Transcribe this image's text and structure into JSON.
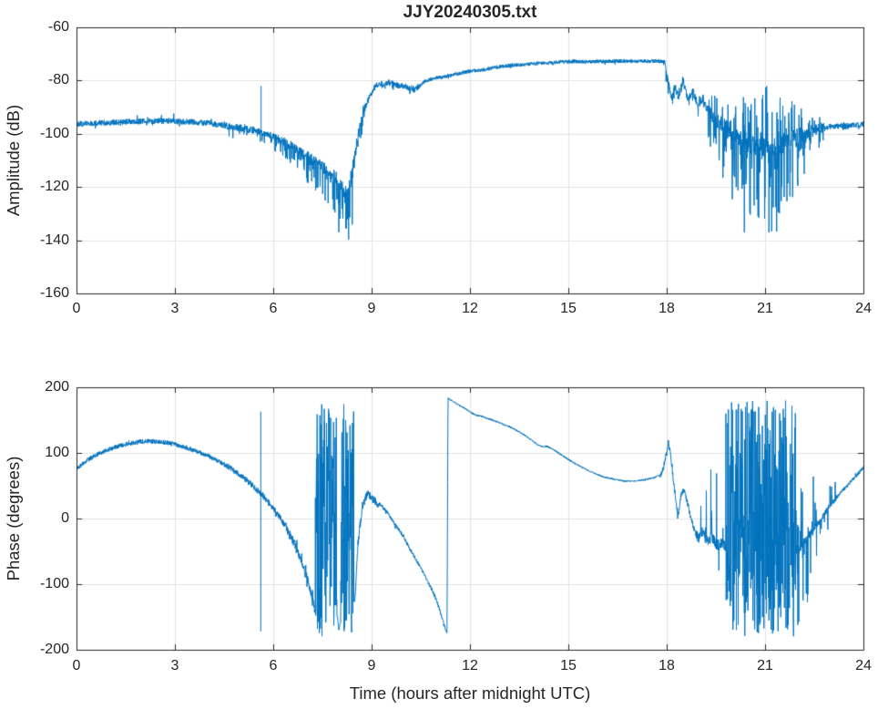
{
  "figure": {
    "background": "#ffffff",
    "axis_color": "#262626",
    "grid_color": "#e2e2e2",
    "tick_label_color": "#262626"
  },
  "chart_data": [
    {
      "type": "line",
      "title": "JJY20240305.txt",
      "xlabel": "",
      "ylabel": "Amplitude (dB)",
      "xlim": [
        0,
        24
      ],
      "ylim": [
        -160,
        -60
      ],
      "xticks": [
        0,
        3,
        6,
        9,
        12,
        15,
        18,
        21,
        24
      ],
      "yticks": [
        -60,
        -80,
        -100,
        -120,
        -140,
        -160
      ],
      "grid": true,
      "legend": "none",
      "line_color": "#0072BD",
      "series": [
        {
          "name": "amplitude",
          "keypoints": [
            [
              0,
              -96.5
            ],
            [
              0.5,
              -96
            ],
            [
              1,
              -95.8
            ],
            [
              1.5,
              -95.5
            ],
            [
              2,
              -95.3
            ],
            [
              2.5,
              -95.2
            ],
            [
              3,
              -95.3
            ],
            [
              3.5,
              -95.6
            ],
            [
              4,
              -96
            ],
            [
              4.5,
              -96.8
            ],
            [
              5,
              -97.8
            ],
            [
              5.5,
              -99
            ],
            [
              6,
              -101
            ],
            [
              6.4,
              -103.5
            ],
            [
              6.8,
              -106.5
            ],
            [
              7.2,
              -110
            ],
            [
              7.6,
              -113.5
            ],
            [
              7.9,
              -117
            ],
            [
              8.1,
              -120
            ],
            [
              8.25,
              -122
            ],
            [
              8.35,
              -118
            ],
            [
              8.45,
              -111
            ],
            [
              8.55,
              -103
            ],
            [
              8.65,
              -97
            ],
            [
              8.75,
              -92
            ],
            [
              8.85,
              -88.5
            ],
            [
              9,
              -84.5
            ],
            [
              9.1,
              -82.5
            ],
            [
              9.25,
              -81
            ],
            [
              9.4,
              -81.5
            ],
            [
              9.55,
              -80.5
            ],
            [
              9.7,
              -81.5
            ],
            [
              9.85,
              -82
            ],
            [
              10,
              -82
            ],
            [
              10.15,
              -83
            ],
            [
              10.3,
              -83.5
            ],
            [
              10.45,
              -82
            ],
            [
              10.6,
              -80.5
            ],
            [
              10.8,
              -79.5
            ],
            [
              11,
              -79
            ],
            [
              11.3,
              -78.5
            ],
            [
              11.6,
              -77.5
            ],
            [
              12,
              -76.5
            ],
            [
              12.4,
              -76
            ],
            [
              12.8,
              -75
            ],
            [
              13.2,
              -74.3
            ],
            [
              13.6,
              -74
            ],
            [
              14,
              -73.6
            ],
            [
              14.4,
              -73.3
            ],
            [
              14.8,
              -73
            ],
            [
              15.2,
              -72.8
            ],
            [
              15.6,
              -73
            ],
            [
              16,
              -72.8
            ],
            [
              16.4,
              -72.7
            ],
            [
              16.8,
              -72.6
            ],
            [
              17.2,
              -72.8
            ],
            [
              17.6,
              -72.7
            ],
            [
              17.9,
              -72.8
            ],
            [
              17.95,
              -74
            ],
            [
              18.05,
              -81
            ],
            [
              18.15,
              -87
            ],
            [
              18.25,
              -82
            ],
            [
              18.35,
              -86
            ],
            [
              18.5,
              -80.5
            ],
            [
              18.65,
              -87
            ],
            [
              18.8,
              -84
            ],
            [
              18.95,
              -89
            ],
            [
              19.1,
              -87
            ],
            [
              19.3,
              -92
            ],
            [
              19.5,
              -95
            ],
            [
              19.8,
              -98
            ],
            [
              20.1,
              -100
            ],
            [
              20.5,
              -103
            ],
            [
              20.9,
              -105
            ],
            [
              21.2,
              -107
            ],
            [
              21.5,
              -105
            ],
            [
              21.8,
              -102.5
            ],
            [
              22.1,
              -100.5
            ],
            [
              22.4,
              -99
            ],
            [
              22.7,
              -98
            ],
            [
              23,
              -97.3
            ],
            [
              23.4,
              -97
            ],
            [
              23.8,
              -96.6
            ],
            [
              24,
              -96.4
            ]
          ],
          "noise_segments": [
            [
              0,
              4.5,
              1.1,
              0.08,
              3,
              2.5
            ],
            [
              4.5,
              6,
              1.4,
              0.15,
              2,
              4.5
            ],
            [
              6,
              7,
              1.8,
              0.3,
              2,
              7
            ],
            [
              7,
              7.8,
              2.2,
              0.4,
              3,
              12
            ],
            [
              7.8,
              8.45,
              2.8,
              0.5,
              4,
              22
            ],
            [
              8.45,
              8.8,
              2.2,
              0.3,
              3,
              7
            ],
            [
              8.8,
              10.5,
              1.1,
              0.12,
              1.5,
              2.5
            ],
            [
              10.5,
              17.9,
              0.7,
              0.06,
              1,
              1.3
            ],
            [
              17.9,
              19.25,
              1.4,
              0.2,
              2.5,
              4.5
            ],
            [
              19.25,
              19.65,
              2.5,
              0.4,
              9,
              15
            ],
            [
              19.65,
              20.3,
              3.5,
              0.5,
              16,
              26
            ],
            [
              20.3,
              21.5,
              4.5,
              0.55,
              24,
              36
            ],
            [
              21.5,
              22.2,
              3.5,
              0.45,
              16,
              22
            ],
            [
              22.2,
              22.8,
              2,
              0.3,
              5,
              8
            ],
            [
              22.8,
              24,
              1,
              0.1,
              1.6,
              2.6
            ]
          ],
          "full_noise_segments": [],
          "spike_events": [
            [
              5.63,
              -99,
              -82
            ]
          ]
        }
      ]
    },
    {
      "type": "line",
      "title": "",
      "xlabel": "Time (hours after midnight UTC)",
      "ylabel": "Phase (degrees)",
      "xlim": [
        0,
        24
      ],
      "ylim": [
        -200,
        200
      ],
      "xticks": [
        0,
        3,
        6,
        9,
        12,
        15,
        18,
        21,
        24
      ],
      "yticks": [
        200,
        100,
        0,
        -100,
        -200
      ],
      "grid": true,
      "legend": "none",
      "line_color": "#0072BD",
      "series": [
        {
          "name": "phase",
          "keypoints": [
            [
              0,
              75
            ],
            [
              0.3,
              88
            ],
            [
              0.6,
              97
            ],
            [
              0.9,
              104
            ],
            [
              1.2,
              109
            ],
            [
              1.5,
              113
            ],
            [
              1.8,
              116
            ],
            [
              2.1,
              118
            ],
            [
              2.4,
              117.5
            ],
            [
              2.7,
              116
            ],
            [
              3,
              113
            ],
            [
              3.3,
              109
            ],
            [
              3.6,
              104
            ],
            [
              3.9,
              98
            ],
            [
              4.2,
              91
            ],
            [
              4.5,
              83
            ],
            [
              4.8,
              73
            ],
            [
              5.1,
              62
            ],
            [
              5.4,
              49
            ],
            [
              5.7,
              34
            ],
            [
              6,
              16
            ],
            [
              6.2,
              2
            ],
            [
              6.4,
              -14
            ],
            [
              6.6,
              -34
            ],
            [
              6.8,
              -58
            ],
            [
              7,
              -85
            ],
            [
              7.1,
              -105
            ],
            [
              7.2,
              -125
            ],
            [
              7.27,
              -140
            ],
            [
              7.96,
              -150
            ],
            [
              8,
              -170
            ],
            [
              8.04,
              -160
            ],
            [
              8.5,
              -120
            ],
            [
              8.56,
              -60
            ],
            [
              8.62,
              -20
            ],
            [
              8.7,
              10
            ],
            [
              8.8,
              30
            ],
            [
              8.88,
              38
            ],
            [
              9,
              32
            ],
            [
              9.1,
              26
            ],
            [
              9.3,
              20
            ],
            [
              9.5,
              8
            ],
            [
              9.7,
              -8
            ],
            [
              9.9,
              -22
            ],
            [
              10.1,
              -40
            ],
            [
              10.3,
              -58
            ],
            [
              10.5,
              -75
            ],
            [
              10.7,
              -95
            ],
            [
              10.9,
              -115
            ],
            [
              11.05,
              -135
            ],
            [
              11.15,
              -152
            ],
            [
              11.25,
              -168
            ],
            [
              11.3,
              -177
            ],
            [
              11.33,
              183
            ],
            [
              11.5,
              178
            ],
            [
              11.7,
              172
            ],
            [
              11.9,
              166
            ],
            [
              12.05,
              161
            ],
            [
              12.2,
              157
            ],
            [
              12.35,
              156
            ],
            [
              12.5,
              153
            ],
            [
              12.7,
              150
            ],
            [
              12.9,
              146
            ],
            [
              13.1,
              142
            ],
            [
              13.3,
              138
            ],
            [
              13.5,
              132
            ],
            [
              13.7,
              126
            ],
            [
              13.9,
              119
            ],
            [
              14.05,
              113
            ],
            [
              14.2,
              110
            ],
            [
              14.35,
              110
            ],
            [
              14.5,
              106
            ],
            [
              14.7,
              100
            ],
            [
              14.9,
              93
            ],
            [
              15.1,
              87
            ],
            [
              15.3,
              81
            ],
            [
              15.5,
              76
            ],
            [
              15.7,
              71
            ],
            [
              15.9,
              67
            ],
            [
              16.1,
              63
            ],
            [
              16.4,
              60
            ],
            [
              16.7,
              57
            ],
            [
              17,
              57
            ],
            [
              17.3,
              59
            ],
            [
              17.6,
              62
            ],
            [
              17.8,
              66
            ],
            [
              17.9,
              75
            ],
            [
              18,
              100
            ],
            [
              18.05,
              116
            ],
            [
              18.1,
              105
            ],
            [
              18.2,
              60
            ],
            [
              18.3,
              20
            ],
            [
              18.35,
              5
            ],
            [
              18.45,
              40
            ],
            [
              18.55,
              43
            ],
            [
              18.65,
              20
            ],
            [
              18.75,
              0
            ],
            [
              18.85,
              -18
            ],
            [
              18.95,
              -30
            ],
            [
              19.1,
              -20
            ],
            [
              19.25,
              -38
            ],
            [
              19.4,
              -28
            ],
            [
              19.55,
              -42
            ],
            [
              19.7,
              -35
            ],
            [
              19.8,
              -45
            ],
            [
              22,
              -48
            ],
            [
              22.15,
              -38
            ],
            [
              22.3,
              -28
            ],
            [
              22.45,
              -18
            ],
            [
              22.6,
              -8
            ],
            [
              22.75,
              2
            ],
            [
              22.9,
              14
            ],
            [
              23.05,
              25
            ],
            [
              23.2,
              33
            ],
            [
              23.35,
              42
            ],
            [
              23.5,
              50
            ],
            [
              23.65,
              58
            ],
            [
              23.8,
              66
            ],
            [
              23.9,
              72
            ],
            [
              24,
              78
            ]
          ],
          "noise_segments": [
            [
              0,
              4.5,
              3.5,
              0.02,
              6,
              6
            ],
            [
              4.5,
              6.5,
              4.5,
              0.05,
              9,
              9
            ],
            [
              6.5,
              7.28,
              7,
              0.15,
              18,
              18
            ],
            [
              8.46,
              9.2,
              6,
              0.12,
              12,
              12
            ],
            [
              9.2,
              11.3,
              2.5,
              0.04,
              6,
              6
            ],
            [
              11.33,
              17.8,
              1.2,
              0.01,
              3,
              3
            ],
            [
              17.8,
              18.9,
              4.5,
              0.1,
              12,
              12
            ],
            [
              18.9,
              19.8,
              9,
              0.15,
              190,
              60
            ],
            [
              21.95,
              22.6,
              7,
              0.3,
              100,
              120
            ],
            [
              22.6,
              23.2,
              4.5,
              0.15,
              30,
              40
            ],
            [
              23.2,
              24,
              2.5,
              0.05,
              8,
              8
            ]
          ],
          "full_noise_segments": [
            [
              7.28,
              7.94,
              -180,
              180
            ],
            [
              8.06,
              8.46,
              -180,
              180
            ],
            [
              19.8,
              21.95,
              -180,
              180
            ]
          ],
          "spike_events": [
            [
              5.62,
              -172,
              163
            ]
          ]
        }
      ]
    }
  ]
}
